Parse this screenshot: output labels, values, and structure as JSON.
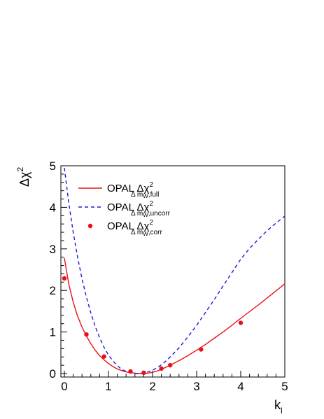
{
  "chart_data": {
    "type": "line",
    "title": "",
    "xlabel": "k",
    "xlabel_sub": "l",
    "ylabel": "Δχ",
    "ylabel_sup": "2",
    "xlim": [
      0,
      5
    ],
    "ylim": [
      0,
      5
    ],
    "x_ticks": [
      "0",
      "1",
      "2",
      "3",
      "4",
      "5"
    ],
    "y_ticks": [
      "0",
      "1",
      "2",
      "3",
      "4",
      "5"
    ],
    "grid": false,
    "legend_position": "top-left",
    "colors": {
      "full": "#e8111a",
      "uncorr": "#1b1bd9",
      "corr": "#e8111a"
    },
    "series": [
      {
        "name": "OPAL Δχ",
        "name_sup": "2",
        "name_sub1": "Δ m",
        "name_sub2": "W",
        "name_sub3": ",full",
        "style": "solid-line",
        "x": [
          0,
          0.1,
          0.2,
          0.3,
          0.4,
          0.5,
          0.6,
          0.7,
          0.8,
          0.9,
          1.0,
          1.1,
          1.2,
          1.3,
          1.4,
          1.5,
          1.6,
          1.7,
          1.8,
          1.9,
          2.0,
          2.1,
          2.2,
          2.3,
          2.4,
          2.6,
          2.8,
          3.0,
          3.2,
          3.4,
          3.6,
          3.8,
          4.0,
          4.2,
          4.4,
          4.6,
          4.8,
          5.0
        ],
        "y": [
          2.78,
          2.15,
          1.72,
          1.38,
          1.12,
          0.9,
          0.72,
          0.56,
          0.43,
          0.33,
          0.24,
          0.17,
          0.11,
          0.07,
          0.04,
          0.02,
          0.01,
          0.0,
          0.0,
          0.01,
          0.03,
          0.06,
          0.1,
          0.15,
          0.2,
          0.31,
          0.43,
          0.56,
          0.7,
          0.85,
          1.0,
          1.16,
          1.33,
          1.49,
          1.65,
          1.82,
          1.99,
          2.16
        ]
      },
      {
        "name": "OPAL Δχ",
        "name_sup": "2",
        "name_sub1": "Δ m",
        "name_sub2": "W",
        "name_sub3": ",uncorr",
        "style": "dashed-line",
        "x": [
          0,
          0.1,
          0.2,
          0.3,
          0.4,
          0.5,
          0.6,
          0.7,
          0.8,
          0.9,
          1.0,
          1.1,
          1.2,
          1.3,
          1.4,
          1.5,
          1.6,
          1.7,
          1.8,
          1.9,
          2.0,
          2.1,
          2.2,
          2.3,
          2.4,
          2.6,
          2.8,
          3.0,
          3.2,
          3.4,
          3.6,
          3.8,
          4.0,
          4.2,
          4.4,
          4.6,
          4.8,
          5.0
        ],
        "y": [
          4.95,
          4.1,
          3.4,
          2.8,
          2.28,
          1.84,
          1.46,
          1.13,
          0.86,
          0.63,
          0.45,
          0.3,
          0.19,
          0.1,
          0.05,
          0.02,
          0.0,
          0.0,
          0.01,
          0.04,
          0.08,
          0.14,
          0.21,
          0.3,
          0.4,
          0.62,
          0.88,
          1.16,
          1.47,
          1.78,
          2.11,
          2.43,
          2.75,
          3.01,
          3.23,
          3.44,
          3.62,
          3.79
        ]
      },
      {
        "name": "OPAL Δχ",
        "name_sup": "2",
        "name_sub1": "Δ m",
        "name_sub2": "W",
        "name_sub3": ",corr",
        "style": "markers",
        "x": [
          0.0,
          0.5,
          0.9,
          1.5,
          1.8,
          2.2,
          2.4,
          3.1,
          4.0
        ],
        "y": [
          2.29,
          0.94,
          0.41,
          0.05,
          0.02,
          0.12,
          0.2,
          0.58,
          1.22
        ]
      }
    ]
  }
}
